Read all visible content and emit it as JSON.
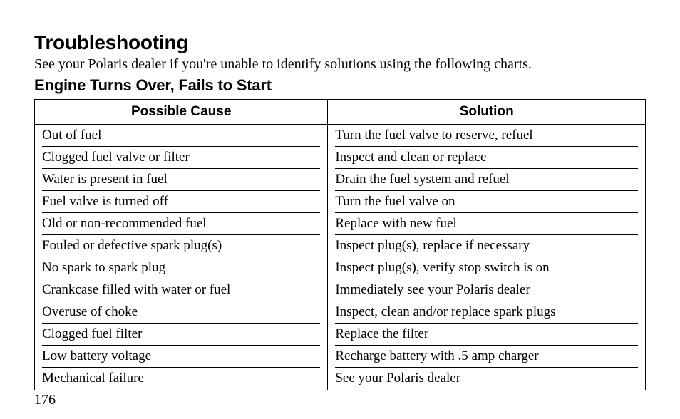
{
  "title": "Troubleshooting",
  "intro": "See your Polaris dealer if you're unable to identify solutions using the following charts.",
  "subhead": "Engine Turns Over, Fails to Start",
  "table": {
    "columns": [
      "Possible Cause",
      "Solution"
    ],
    "col_widths_pct": [
      48,
      52
    ],
    "header_font": "Arial",
    "header_fontsize_pt": 14,
    "body_font": "Times New Roman",
    "body_fontsize_pt": 14,
    "border_color": "#000000",
    "background_color": "#ffffff",
    "rows": [
      [
        "Out of fuel",
        "Turn the fuel valve to reserve, refuel"
      ],
      [
        "Clogged fuel valve or filter",
        "Inspect and clean or replace"
      ],
      [
        "Water is present in fuel",
        "Drain the fuel system and refuel"
      ],
      [
        "Fuel valve is turned off",
        "Turn the fuel valve on"
      ],
      [
        "Old or non-recommended fuel",
        "Replace with new fuel"
      ],
      [
        "Fouled or defective spark plug(s)",
        "Inspect plug(s), replace if necessary"
      ],
      [
        "No spark to spark plug",
        "Inspect plug(s), verify stop switch is on"
      ],
      [
        "Crankcase filled with water or fuel",
        "Immediately see your Polaris dealer"
      ],
      [
        "Overuse of choke",
        "Inspect, clean and/or replace spark plugs"
      ],
      [
        "Clogged fuel filter",
        "Replace the filter"
      ],
      [
        "Low battery voltage",
        "Recharge battery with .5 amp charger"
      ],
      [
        "Mechanical failure",
        "See your Polaris dealer"
      ]
    ]
  },
  "page_number": "176"
}
